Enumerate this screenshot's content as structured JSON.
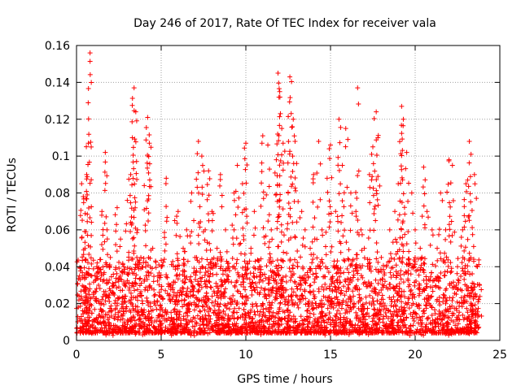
{
  "chart_data": {
    "type": "scatter",
    "title": "Day 246 of 2017, Rate Of TEC Index for receiver vala",
    "xlabel": "GPS time / hours",
    "ylabel": "ROTI / TECUs",
    "xlim": [
      0,
      25
    ],
    "ylim": [
      0,
      0.16
    ],
    "xticks": [
      0,
      5,
      10,
      15,
      20,
      25
    ],
    "xtick_labels": [
      "0",
      "5",
      "10",
      "15",
      "20",
      "25"
    ],
    "yticks": [
      0,
      0.02,
      0.04,
      0.06,
      0.08,
      0.1,
      0.12,
      0.14,
      0.16
    ],
    "ytick_labels": [
      "0",
      "0.02",
      "0.04",
      "0.06",
      "0.08",
      "0.1",
      "0.12",
      "0.14",
      "0.16"
    ],
    "grid": true,
    "marker": "+",
    "color": "#ff0000",
    "series": [
      {
        "name": "ROTI",
        "x": [
          0.1,
          0.3,
          0.4,
          0.5,
          0.6,
          0.7,
          0.8,
          0.9,
          1.0,
          1.2,
          1.3,
          1.5,
          1.7,
          1.8,
          2.0,
          2.2,
          2.4,
          2.6,
          2.8,
          3.0,
          3.2,
          3.3,
          3.4,
          3.5,
          3.6,
          3.8,
          4.0,
          4.2,
          4.3,
          4.5,
          4.8,
          5.0,
          5.3,
          5.5,
          5.8,
          6.0,
          6.3,
          6.5,
          6.8,
          7.0,
          7.2,
          7.4,
          7.6,
          7.8,
          8.0,
          8.3,
          8.5,
          8.8,
          9.0,
          9.3,
          9.5,
          9.8,
          10.0,
          10.3,
          10.5,
          10.8,
          11.0,
          11.3,
          11.5,
          11.8,
          11.9,
          12.0,
          12.2,
          12.5,
          12.6,
          12.8,
          13.0,
          13.3,
          13.5,
          13.8,
          14.0,
          14.3,
          14.5,
          14.8,
          15.0,
          15.3,
          15.5,
          15.7,
          15.9,
          16.2,
          16.5,
          16.6,
          16.8,
          17.0,
          17.3,
          17.5,
          17.7,
          17.8,
          18.0,
          18.3,
          18.5,
          18.8,
          19.0,
          19.2,
          19.3,
          19.5,
          19.8,
          20.0,
          20.3,
          20.5,
          20.7,
          21.0,
          21.3,
          21.5,
          21.8,
          22.0,
          22.2,
          22.5,
          22.8,
          23.0,
          23.2,
          23.3,
          23.5,
          23.8
        ],
        "y": [
          0.018,
          0.085,
          0.078,
          0.05,
          0.09,
          0.107,
          0.156,
          0.035,
          0.025,
          0.04,
          0.03,
          0.07,
          0.102,
          0.06,
          0.045,
          0.03,
          0.072,
          0.055,
          0.04,
          0.076,
          0.09,
          0.11,
          0.137,
          0.124,
          0.06,
          0.045,
          0.084,
          0.121,
          0.107,
          0.05,
          0.035,
          0.04,
          0.088,
          0.03,
          0.065,
          0.07,
          0.05,
          0.06,
          0.08,
          0.045,
          0.108,
          0.1,
          0.06,
          0.092,
          0.07,
          0.05,
          0.09,
          0.06,
          0.04,
          0.08,
          0.095,
          0.085,
          0.107,
          0.05,
          0.07,
          0.04,
          0.111,
          0.106,
          0.06,
          0.098,
          0.145,
          0.135,
          0.107,
          0.08,
          0.143,
          0.12,
          0.096,
          0.07,
          0.06,
          0.05,
          0.09,
          0.108,
          0.06,
          0.088,
          0.106,
          0.07,
          0.12,
          0.095,
          0.115,
          0.08,
          0.07,
          0.137,
          0.06,
          0.05,
          0.09,
          0.105,
          0.124,
          0.11,
          0.045,
          0.04,
          0.06,
          0.07,
          0.085,
          0.127,
          0.12,
          0.102,
          0.08,
          0.06,
          0.05,
          0.094,
          0.07,
          0.06,
          0.05,
          0.08,
          0.06,
          0.098,
          0.095,
          0.04,
          0.06,
          0.085,
          0.108,
          0.101,
          0.09,
          0.03
        ],
        "dense_band": {
          "x_range": [
            0.0,
            23.8
          ],
          "y_range": [
            0.004,
            0.045
          ],
          "typical": 0.015
        }
      }
    ]
  }
}
